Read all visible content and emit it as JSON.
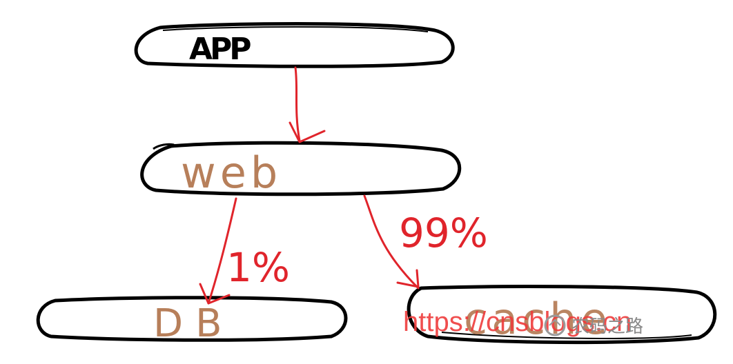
{
  "nodes": {
    "app": "APP",
    "web": "web",
    "db": "DB",
    "cache": "cache"
  },
  "edges": {
    "web_to_db": "1%",
    "web_to_cache": "99%"
  },
  "watermark": {
    "url": "https://cnsblogs.cn",
    "author": "农码之路"
  },
  "colors": {
    "outline": "#000000",
    "arrow": "#e0242b",
    "node_text": "#b77f5a"
  }
}
